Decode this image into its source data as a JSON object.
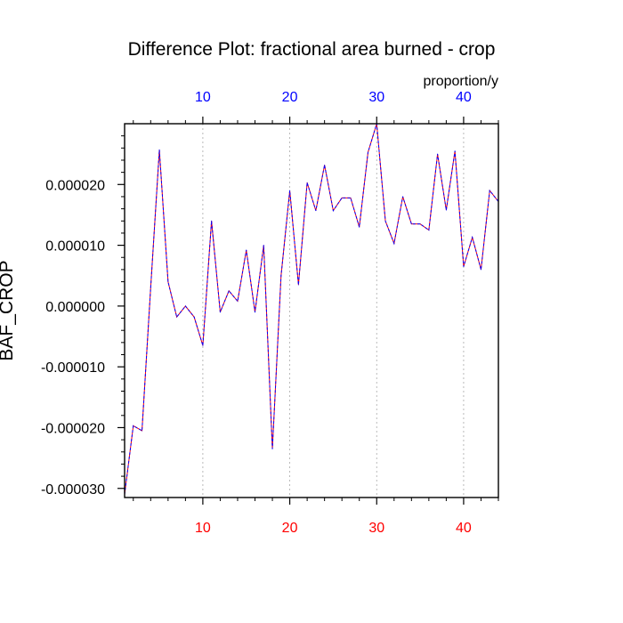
{
  "chart_data": {
    "type": "line",
    "title": "Difference Plot: fractional area burned - crop",
    "units": "proportion/y",
    "ylabel": "BAF_CROP",
    "xlim": [
      1,
      44
    ],
    "ylim": [
      -3.15e-05,
      3e-05
    ],
    "x_ticks": [
      10,
      20,
      30,
      40
    ],
    "y_ticks": [
      -3e-05,
      -2e-05,
      -1e-05,
      0,
      1e-05,
      2e-05
    ],
    "y_tick_labels": [
      "-0.000030",
      "-0.000020",
      "-0.000010",
      "0.000000",
      "0.000010",
      "0.000020"
    ],
    "grid": "vertical dotted lines at major x ticks",
    "colors": {
      "bottom_ticks": "#ff0000",
      "top_ticks": "#0000ff",
      "line_a": "#ff0000",
      "line_b": "#0000ff",
      "grid": "#aaaaaa"
    },
    "x": [
      1,
      2,
      3,
      4,
      5,
      6,
      7,
      8,
      9,
      10,
      11,
      12,
      13,
      14,
      15,
      16,
      17,
      18,
      19,
      20,
      21,
      22,
      23,
      24,
      25,
      26,
      27,
      28,
      29,
      30,
      31,
      32,
      33,
      34,
      35,
      36,
      37,
      38,
      39,
      40,
      41,
      42,
      43,
      44
    ],
    "values": [
      -3.1e-05,
      -1.97e-05,
      -2.05e-05,
      3e-06,
      2.57e-05,
      4e-06,
      -1.8e-06,
      0.0,
      -1.8e-06,
      -6.5e-06,
      1.4e-05,
      -1e-06,
      2.5e-06,
      8e-07,
      9.2e-06,
      -1e-06,
      1e-05,
      -2.35e-05,
      5e-06,
      1.9e-05,
      3.5e-06,
      2.03e-05,
      1.57e-05,
      2.32e-05,
      1.57e-05,
      1.78e-05,
      1.78e-05,
      1.3e-05,
      2.53e-05,
      3e-05,
      1.4e-05,
      1.03e-05,
      1.8e-05,
      1.35e-05,
      1.35e-05,
      1.25e-05,
      2.5e-05,
      1.58e-05,
      2.55e-05,
      6.5e-06,
      1.13e-05,
      6e-06,
      1.9e-05,
      1.72e-05
    ]
  }
}
